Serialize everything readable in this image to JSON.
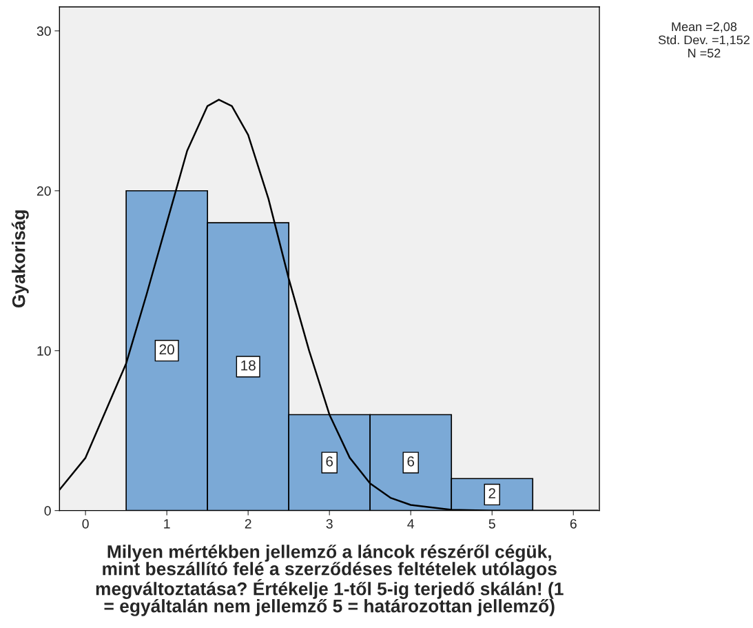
{
  "chart_data": {
    "type": "histogram",
    "xlabel": "Milyen mértékben jellemző a láncok részéről cégük,\nmint beszállító felé a szerződéses feltételek utólagos\nmegváltoztatása? Értékelje 1-től 5-ig terjedő skálán! (1\n= egyáltalán nem jellemző 5 = határozottan jellemző)",
    "ylabel": "Gyakoriság",
    "bins": [
      0.5,
      1.5,
      2.5,
      3.5,
      4.5,
      5.5
    ],
    "values": [
      20,
      18,
      6,
      6,
      2
    ],
    "color": "#7ba9d6",
    "value_labels": [
      "20",
      "18",
      "6",
      "6",
      "2"
    ],
    "series": [
      {
        "type": "line",
        "color": "#000000",
        "x": [
          -0.32,
          0,
          0.5,
          0.75,
          1.0,
          1.25,
          1.5,
          1.64,
          1.8,
          2.0,
          2.25,
          2.5,
          2.75,
          3.0,
          3.25,
          3.5,
          3.75,
          4.0,
          4.5,
          5.0,
          6.3
        ],
        "values": [
          1.3,
          3.3,
          9.2,
          13.5,
          18.0,
          22.5,
          25.3,
          25.7,
          25.3,
          23.5,
          19.5,
          14.5,
          10.0,
          6.0,
          3.3,
          1.7,
          0.8,
          0.35,
          0.05,
          0,
          0
        ]
      }
    ],
    "xlim": [
      -0.32,
      6.32
    ],
    "ylim": [
      0,
      31.5
    ],
    "xticks": [
      0,
      1,
      2,
      3,
      4,
      5,
      6
    ],
    "yticks": [
      0,
      10,
      20,
      30
    ],
    "grid": false,
    "annotations": [
      "Mean =2,08",
      "Std. Dev. =1,152",
      "N =52"
    ]
  }
}
